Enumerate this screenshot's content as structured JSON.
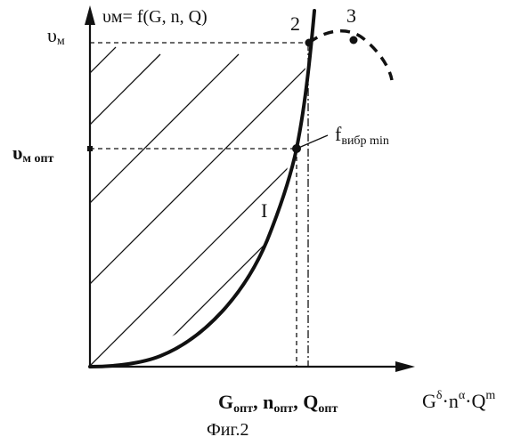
{
  "figure": {
    "function_label": "υм= f(G, n, Q)",
    "y_label_main": "υ",
    "y_label_sub": "м",
    "y_opt_main": "υ",
    "y_opt_sub": "м опт",
    "point_2": "2",
    "point_3": "3",
    "curve_label": "I",
    "vibration_main": "f",
    "vibration_sub": "вибр min",
    "x_opt": {
      "g_main": "G",
      "g_sub": "опт",
      "sep1": ", ",
      "n_main": "n",
      "n_sub": "опт",
      "sep2": ", ",
      "q_main": "Q",
      "q_sub": "опт"
    },
    "x_axis": {
      "g": "G",
      "delta": "δ",
      "dot1": "·",
      "n": "n",
      "alpha": "α",
      "dot2": "·",
      "q": "Q",
      "m": "m"
    },
    "caption": "Фиг.2"
  }
}
